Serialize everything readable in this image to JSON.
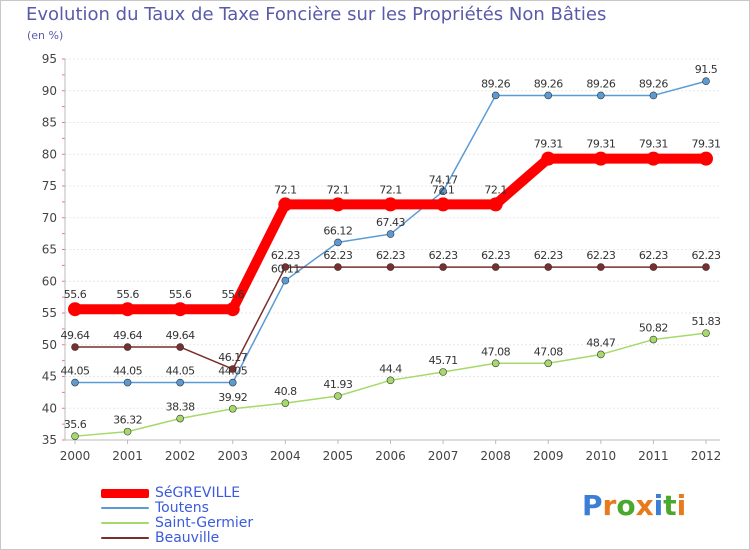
{
  "title": "Evolution du Taux de Taxe Foncière sur les Propriétés Non Bâties",
  "unit": "(en %)",
  "logo": {
    "letters": [
      "P",
      "r",
      "o",
      "x",
      "i",
      "t",
      "i"
    ],
    "colors": [
      "#3a7fd5",
      "#e87a1e",
      "#4aa82e",
      "#e87a1e",
      "#3a7fd5",
      "#4aa82e",
      "#e87a1e"
    ]
  },
  "chart_data": {
    "type": "line",
    "title": "Evolution du Taux de Taxe Foncière sur les Propriétés Non Bâties",
    "ylabel": "(en %)",
    "xlabel": "",
    "ylim": [
      35,
      95
    ],
    "yticks": [
      35,
      40,
      45,
      50,
      55,
      60,
      65,
      70,
      75,
      80,
      85,
      90,
      95
    ],
    "x": [
      "2000",
      "2001",
      "2002",
      "2003",
      "2004",
      "2005",
      "2006",
      "2007",
      "2008",
      "2009",
      "2010",
      "2011",
      "2012"
    ],
    "grid": true,
    "legend": "bottom-left",
    "series": [
      {
        "name": "Toutens",
        "color": "#5b9bd5",
        "values": [
          44.05,
          44.05,
          44.05,
          44.05,
          60.11,
          66.12,
          67.43,
          74.17,
          89.26,
          89.26,
          89.26,
          89.26,
          91.5
        ],
        "labels": [
          "44.05",
          "44.05",
          "44.05",
          "44.05",
          "60.11",
          "66.12",
          "67.43",
          "74.17",
          "89.26",
          "89.26",
          "89.26",
          "89.26",
          "91.5"
        ]
      },
      {
        "name": "Saint-Germier",
        "color": "#a6d96a",
        "values": [
          35.6,
          36.32,
          38.38,
          39.92,
          40.8,
          41.93,
          44.4,
          45.71,
          47.08,
          47.08,
          48.47,
          50.82,
          51.83
        ],
        "labels": [
          "35.6",
          "36.32",
          "38.38",
          "39.92",
          "40.8",
          "41.93",
          "44.4",
          "45.71",
          "47.08",
          "47.08",
          "48.47",
          "50.82",
          "51.83"
        ]
      },
      {
        "name": "Beauville",
        "color": "#7b2e2e",
        "values": [
          49.64,
          49.64,
          49.64,
          46.17,
          62.23,
          62.23,
          62.23,
          62.23,
          62.23,
          62.23,
          62.23,
          62.23,
          62.23
        ],
        "labels": [
          "49.64",
          "49.64",
          "49.64",
          "46.17",
          "62.23",
          "62.23",
          "62.23",
          "62.23",
          "62.23",
          "62.23",
          "62.23",
          "62.23",
          "62.23"
        ]
      },
      {
        "name": "SéGREVILLE",
        "color": "#ff0000",
        "values": [
          55.6,
          55.6,
          55.6,
          55.6,
          72.1,
          72.1,
          72.1,
          72.1,
          72.1,
          79.31,
          79.31,
          79.31,
          79.31
        ],
        "labels": [
          "55.6",
          "55.6",
          "55.6",
          "55.6",
          "72.1",
          "72.1",
          "72.1",
          "72.1",
          "72.1",
          "79.31",
          "79.31",
          "79.31",
          "79.31"
        ]
      }
    ],
    "legend_entries": [
      {
        "name": "SéGREVILLE",
        "color": "#ff0000"
      },
      {
        "name": "Toutens",
        "color": "#5b9bd5"
      },
      {
        "name": "Saint-Germier",
        "color": "#a6d96a"
      },
      {
        "name": "Beauville",
        "color": "#7b2e2e"
      }
    ]
  }
}
